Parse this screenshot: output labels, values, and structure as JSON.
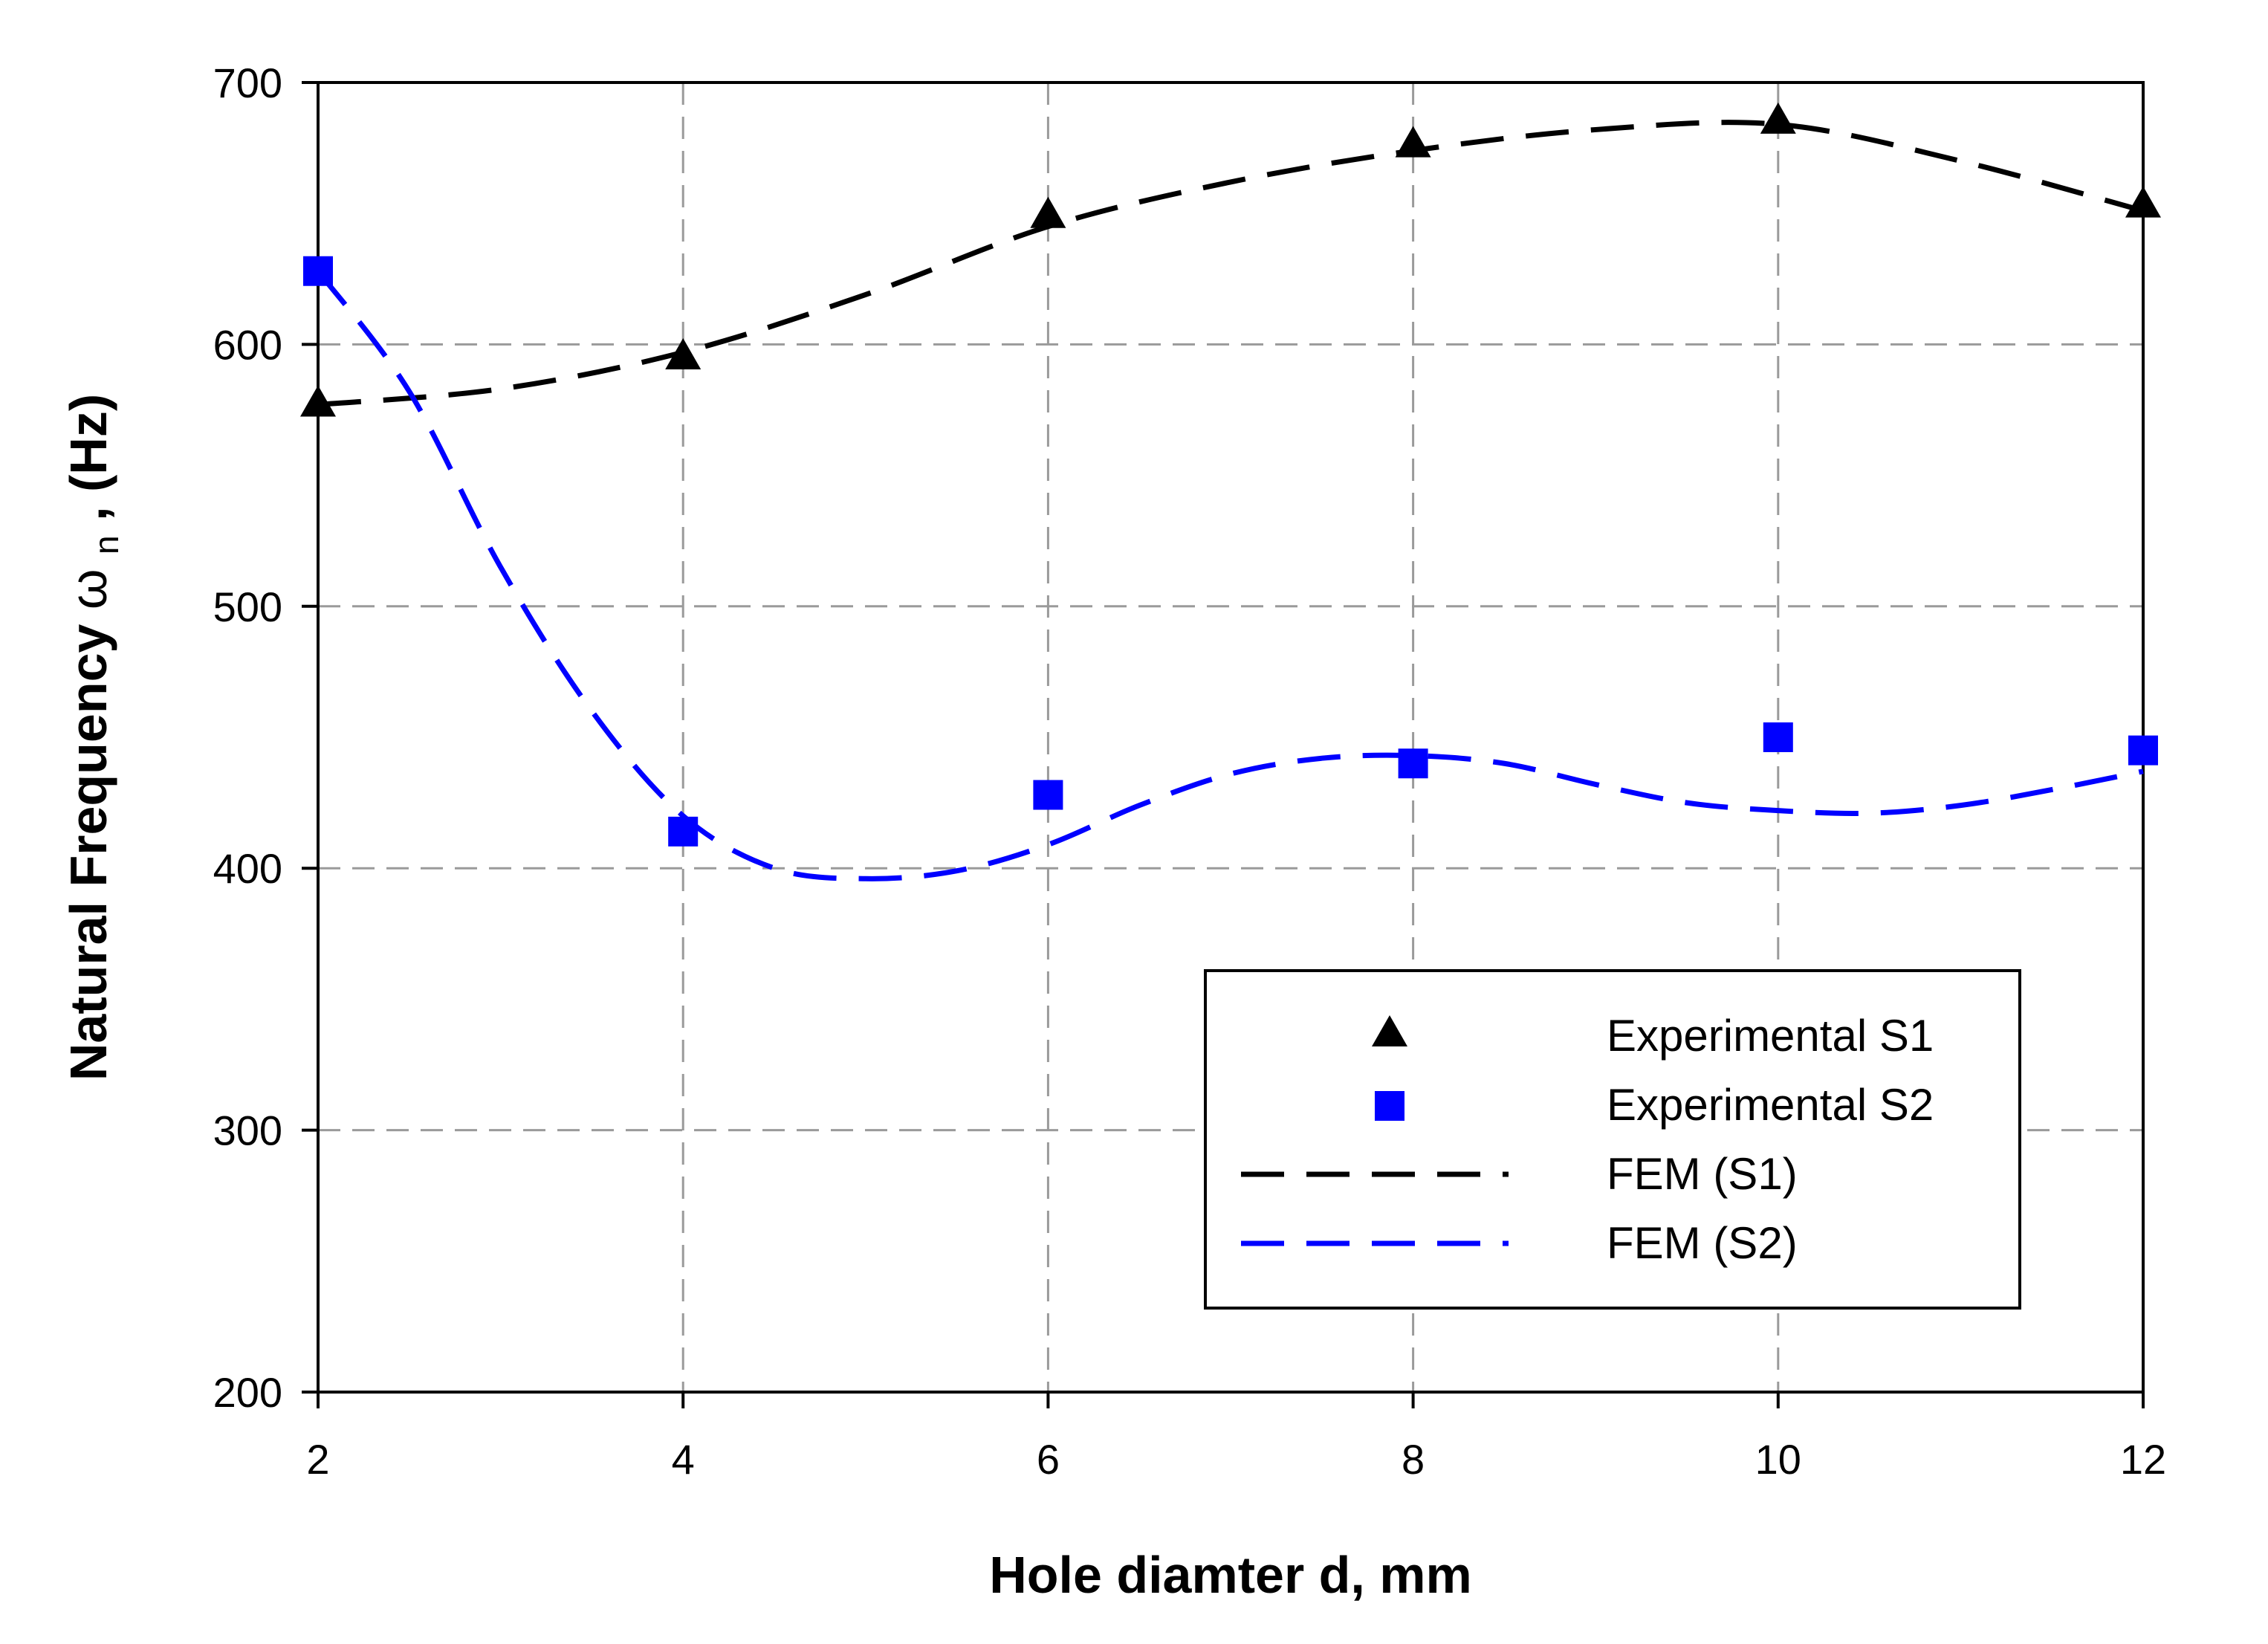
{
  "chart_data": {
    "type": "line",
    "xlabel": "Hole diamter d, mm",
    "ylabel_main": "Natural Frequency",
    "ylabel_symbol": "ω",
    "ylabel_subscript": "n",
    "ylabel_unit": ", (Hz)",
    "xlim": [
      2,
      12
    ],
    "ylim": [
      200,
      700
    ],
    "x_ticks": [
      2,
      4,
      6,
      8,
      10,
      12
    ],
    "y_ticks": [
      200,
      300,
      400,
      500,
      600,
      700
    ],
    "grid": true,
    "legend_position": "bottom-right",
    "series": [
      {
        "name": "Experimental S1",
        "kind": "scatter",
        "marker": "triangle",
        "color": "#000000",
        "x": [
          2,
          4,
          6,
          8,
          10,
          12
        ],
        "y": [
          577,
          595,
          649,
          676,
          685,
          653
        ]
      },
      {
        "name": "Experimental S2",
        "kind": "scatter",
        "marker": "square",
        "color": "#0000ff",
        "x": [
          2,
          4,
          6,
          8,
          10,
          12
        ],
        "y": [
          628,
          414,
          428,
          440,
          450,
          445
        ]
      },
      {
        "name": "FEM (S1)",
        "kind": "dashed-line",
        "color": "#000000",
        "x": [
          2,
          3,
          4,
          5,
          6,
          7,
          8,
          9,
          10,
          11,
          12
        ],
        "y": [
          577,
          583,
          597,
          619,
          645,
          662,
          674,
          682,
          684,
          670,
          651
        ]
      },
      {
        "name": "FEM (S2)",
        "kind": "dashed-line",
        "color": "#0000ff",
        "x": [
          2,
          2.5,
          3,
          3.5,
          4,
          4.5,
          5,
          5.5,
          6,
          6.5,
          7,
          7.5,
          8,
          8.5,
          9,
          9.5,
          10,
          10.5,
          11,
          11.5,
          12
        ],
        "y": [
          628,
          582,
          515,
          460,
          420,
          400,
          396,
          399,
          409,
          424,
          436,
          442,
          443,
          440,
          432,
          425,
          422,
          421,
          424,
          430,
          437
        ]
      }
    ]
  }
}
